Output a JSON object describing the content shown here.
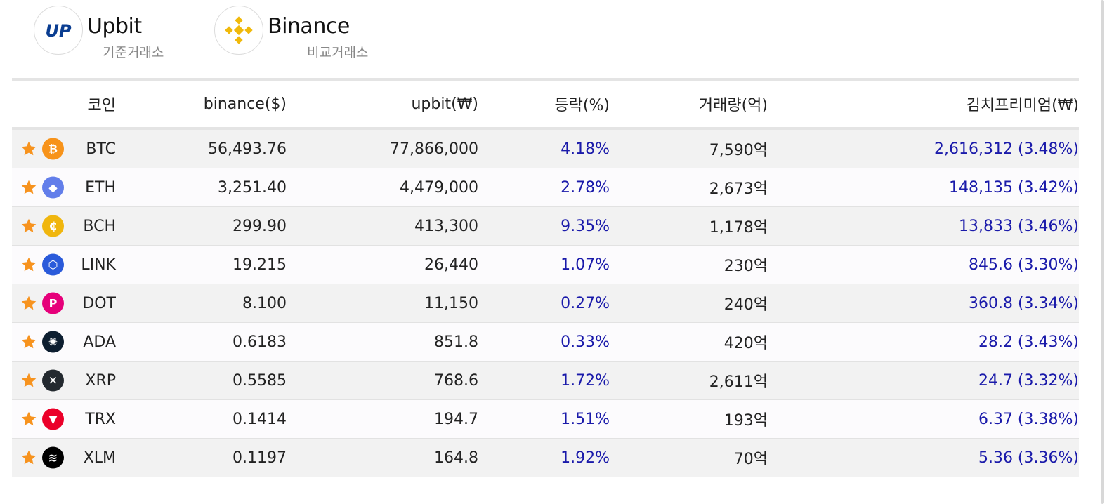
{
  "exchanges": {
    "base": {
      "name": "Upbit",
      "role": "기준거래소",
      "logo_text": "UP",
      "color": "#0a3d91"
    },
    "compare": {
      "name": "Binance",
      "role": "비교거래소",
      "color": "#f0b90b"
    }
  },
  "table": {
    "headers": {
      "coin": "코인",
      "binance": "binance($)",
      "upbit": "upbit(₩)",
      "change": "등락(%)",
      "volume": "거래량(억)",
      "premium": "김치프리미엄(₩)"
    },
    "rows": [
      {
        "symbol": "BTC",
        "icon": "bitcoin-icon",
        "icon_color": "#f7931a",
        "icon_glyph": "₿",
        "binance": "56,493.76",
        "upbit": "77,866,000",
        "change": "4.18%",
        "volume": "7,590억",
        "premium": "2,616,312 (3.48%)"
      },
      {
        "symbol": "ETH",
        "icon": "ethereum-icon",
        "icon_color": "#627eea",
        "icon_glyph": "◆",
        "binance": "3,251.40",
        "upbit": "4,479,000",
        "change": "2.78%",
        "volume": "2,673억",
        "premium": "148,135 (3.42%)"
      },
      {
        "symbol": "BCH",
        "icon": "bitcoin-cash-icon",
        "icon_color": "#f0b60e",
        "icon_glyph": "₵",
        "binance": "299.90",
        "upbit": "413,300",
        "change": "9.35%",
        "volume": "1,178억",
        "premium": "13,833 (3.46%)"
      },
      {
        "symbol": "LINK",
        "icon": "chainlink-icon",
        "icon_color": "#2a5ada",
        "icon_glyph": "⬡",
        "binance": "19.215",
        "upbit": "26,440",
        "change": "1.07%",
        "volume": "230억",
        "premium": "845.6 (3.30%)"
      },
      {
        "symbol": "DOT",
        "icon": "polkadot-icon",
        "icon_color": "#e6007a",
        "icon_glyph": "P",
        "binance": "8.100",
        "upbit": "11,150",
        "change": "0.27%",
        "volume": "240억",
        "premium": "360.8 (3.34%)"
      },
      {
        "symbol": "ADA",
        "icon": "cardano-icon",
        "icon_color": "#0d1e30",
        "icon_glyph": "✺",
        "binance": "0.6183",
        "upbit": "851.8",
        "change": "0.33%",
        "volume": "420억",
        "premium": "28.2 (3.43%)"
      },
      {
        "symbol": "XRP",
        "icon": "xrp-icon",
        "icon_color": "#23292f",
        "icon_glyph": "✕",
        "binance": "0.5585",
        "upbit": "768.6",
        "change": "1.72%",
        "volume": "2,611억",
        "premium": "24.7 (3.32%)"
      },
      {
        "symbol": "TRX",
        "icon": "tron-icon",
        "icon_color": "#eb0029",
        "icon_glyph": "▼",
        "binance": "0.1414",
        "upbit": "194.7",
        "change": "1.51%",
        "volume": "193억",
        "premium": "6.37 (3.38%)"
      },
      {
        "symbol": "XLM",
        "icon": "stellar-icon",
        "icon_color": "#000000",
        "icon_glyph": "≋",
        "binance": "0.1197",
        "upbit": "164.8",
        "change": "1.92%",
        "volume": "70억",
        "premium": "5.36 (3.36%)"
      }
    ]
  },
  "colors": {
    "star": "#f7931e",
    "positive": "#1a1aaa"
  }
}
